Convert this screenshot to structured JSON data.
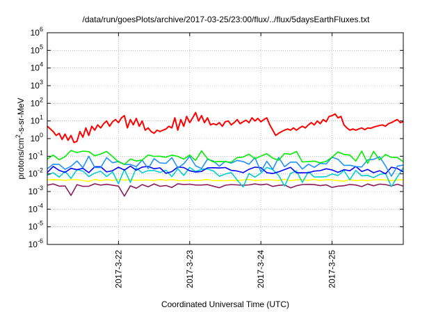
{
  "chart_data": {
    "type": "line",
    "title": "/data/run/goesPlots/archive/2017-03-25/23:00/flux/../flux/5daysEarthFluxes.txt",
    "xlabel": "Coordinated Universal Time (UTC)",
    "ylabel": {
      "base": "protons/cm",
      "sup": "2",
      "rest": "-s-sr-MeV"
    },
    "yscale": "log",
    "ylim": [
      1e-06,
      1000000.0
    ],
    "xlim": [
      "2017-03-21T00:00",
      "2017-03-26T00:00"
    ],
    "grid": true,
    "yticks": [
      {
        "value": 1e-06,
        "base": "10",
        "exp": "-6"
      },
      {
        "value": 1e-05,
        "base": "10",
        "exp": "-5"
      },
      {
        "value": 0.0001,
        "base": "10",
        "exp": "-4"
      },
      {
        "value": 0.001,
        "base": "10",
        "exp": "-3"
      },
      {
        "value": 0.01,
        "base": "10",
        "exp": "-2"
      },
      {
        "value": 0.1,
        "base": "10",
        "exp": "-1"
      },
      {
        "value": 1.0,
        "base": "10",
        "exp": "0"
      },
      {
        "value": 10.0,
        "base": "10",
        "exp": "1"
      },
      {
        "value": 100.0,
        "base": "10",
        "exp": "2"
      },
      {
        "value": 1000.0,
        "base": "10",
        "exp": "3"
      },
      {
        "value": 10000.0,
        "base": "10",
        "exp": "4"
      },
      {
        "value": 100000.0,
        "base": "10",
        "exp": "5"
      },
      {
        "value": 1000000.0,
        "base": "10",
        "exp": "6"
      }
    ],
    "xticks": [
      {
        "value": "2017-03-22T00:00",
        "label": "2017-3-22"
      },
      {
        "value": "2017-03-23T00:00",
        "label": "2017-3-23"
      },
      {
        "value": "2017-03-24T00:00",
        "label": "2017-3-24"
      },
      {
        "value": "2017-03-25T00:00",
        "label": "2017-3-25"
      }
    ],
    "series": [
      {
        "color": "#ff0000",
        "values": [
          [
            "2017-03-21T00:00",
            5
          ],
          [
            "2017-03-21T02:00",
            2.5
          ],
          [
            "2017-03-21T03:00",
            1.5
          ],
          [
            "2017-03-21T04:00",
            2
          ],
          [
            "2017-03-21T05:00",
            0.9
          ],
          [
            "2017-03-21T06:00",
            1.8
          ],
          [
            "2017-03-21T07:00",
            0.8
          ],
          [
            "2017-03-21T08:00",
            1.5
          ],
          [
            "2017-03-21T09:00",
            0.6
          ],
          [
            "2017-03-21T10:00",
            0.7
          ],
          [
            "2017-03-21T11:00",
            2.5
          ],
          [
            "2017-03-21T12:00",
            1.2
          ],
          [
            "2017-03-21T13:00",
            4
          ],
          [
            "2017-03-21T14:00",
            1.5
          ],
          [
            "2017-03-21T15:00",
            5
          ],
          [
            "2017-03-21T16:00",
            3
          ],
          [
            "2017-03-21T17:00",
            6
          ],
          [
            "2017-03-21T18:00",
            4
          ],
          [
            "2017-03-21T19:00",
            7
          ],
          [
            "2017-03-21T20:00",
            10
          ],
          [
            "2017-03-21T21:00",
            5
          ],
          [
            "2017-03-21T22:00",
            9
          ],
          [
            "2017-03-21T23:00",
            12
          ],
          [
            "2017-03-22T00:00",
            8
          ],
          [
            "2017-03-22T01:00",
            15
          ],
          [
            "2017-03-22T02:00",
            20
          ],
          [
            "2017-03-22T03:00",
            4
          ],
          [
            "2017-03-22T04:00",
            12
          ],
          [
            "2017-03-22T05:00",
            6
          ],
          [
            "2017-03-22T06:00",
            14
          ],
          [
            "2017-03-22T07:00",
            5
          ],
          [
            "2017-03-22T08:00",
            10
          ],
          [
            "2017-03-22T09:00",
            3
          ],
          [
            "2017-03-22T10:00",
            4
          ],
          [
            "2017-03-22T11:00",
            2.5
          ],
          [
            "2017-03-22T12:00",
            2
          ],
          [
            "2017-03-22T13:00",
            3
          ],
          [
            "2017-03-22T14:00",
            2.5
          ],
          [
            "2017-03-22T15:00",
            3
          ],
          [
            "2017-03-22T16:00",
            3.5
          ],
          [
            "2017-03-22T17:00",
            5
          ],
          [
            "2017-03-22T18:00",
            4
          ],
          [
            "2017-03-22T19:00",
            15
          ],
          [
            "2017-03-22T20:00",
            3
          ],
          [
            "2017-03-22T21:00",
            12
          ],
          [
            "2017-03-22T22:00",
            5
          ],
          [
            "2017-03-22T23:00",
            18
          ],
          [
            "2017-03-23T00:00",
            8
          ],
          [
            "2017-03-23T01:00",
            15
          ],
          [
            "2017-03-23T02:00",
            30
          ],
          [
            "2017-03-23T03:00",
            10
          ],
          [
            "2017-03-23T04:00",
            20
          ],
          [
            "2017-03-23T05:00",
            8
          ],
          [
            "2017-03-23T06:00",
            15
          ],
          [
            "2017-03-23T07:00",
            6
          ],
          [
            "2017-03-23T08:00",
            7
          ],
          [
            "2017-03-23T09:00",
            6
          ],
          [
            "2017-03-23T10:00",
            8
          ],
          [
            "2017-03-23T11:00",
            5
          ],
          [
            "2017-03-23T12:00",
            9
          ],
          [
            "2017-03-23T13:00",
            10
          ],
          [
            "2017-03-23T14:00",
            6
          ],
          [
            "2017-03-23T15:00",
            8
          ],
          [
            "2017-03-23T16:00",
            12
          ],
          [
            "2017-03-23T17:00",
            7
          ],
          [
            "2017-03-23T18:00",
            9
          ],
          [
            "2017-03-23T19:00",
            11
          ],
          [
            "2017-03-23T20:00",
            8
          ],
          [
            "2017-03-23T21:00",
            15
          ],
          [
            "2017-03-23T22:00",
            10
          ],
          [
            "2017-03-23T23:00",
            14
          ],
          [
            "2017-03-24T00:00",
            9
          ],
          [
            "2017-03-24T01:00",
            12
          ],
          [
            "2017-03-24T02:00",
            15
          ],
          [
            "2017-03-24T03:00",
            6
          ],
          [
            "2017-03-24T04:00",
            3
          ],
          [
            "2017-03-24T05:00",
            1.5
          ],
          [
            "2017-03-24T06:00",
            2
          ],
          [
            "2017-03-24T07:00",
            2.5
          ],
          [
            "2017-03-24T08:00",
            3
          ],
          [
            "2017-03-24T09:00",
            3.5
          ],
          [
            "2017-03-24T10:00",
            3
          ],
          [
            "2017-03-24T11:00",
            4
          ],
          [
            "2017-03-24T12:00",
            3
          ],
          [
            "2017-03-24T13:00",
            4
          ],
          [
            "2017-03-24T14:00",
            5
          ],
          [
            "2017-03-24T15:00",
            4
          ],
          [
            "2017-03-24T16:00",
            6
          ],
          [
            "2017-03-24T17:00",
            8
          ],
          [
            "2017-03-24T18:00",
            6
          ],
          [
            "2017-03-24T19:00",
            10
          ],
          [
            "2017-03-24T20:00",
            7
          ],
          [
            "2017-03-24T21:00",
            12
          ],
          [
            "2017-03-24T22:00",
            9
          ],
          [
            "2017-03-24T23:00",
            18
          ],
          [
            "2017-03-25T00:00",
            20
          ],
          [
            "2017-03-25T01:00",
            25
          ],
          [
            "2017-03-25T02:00",
            15
          ],
          [
            "2017-03-25T03:00",
            18
          ],
          [
            "2017-03-25T04:00",
            6
          ],
          [
            "2017-03-25T05:00",
            4
          ],
          [
            "2017-03-25T06:00",
            3
          ],
          [
            "2017-03-25T07:00",
            3.5
          ],
          [
            "2017-03-25T08:00",
            3
          ],
          [
            "2017-03-25T09:00",
            3.5
          ],
          [
            "2017-03-25T10:00",
            4
          ],
          [
            "2017-03-25T11:00",
            3.2
          ],
          [
            "2017-03-25T12:00",
            4
          ],
          [
            "2017-03-25T13:00",
            3.8
          ],
          [
            "2017-03-25T14:00",
            4.5
          ],
          [
            "2017-03-25T15:00",
            5
          ],
          [
            "2017-03-25T16:00",
            5.5
          ],
          [
            "2017-03-25T17:00",
            6
          ],
          [
            "2017-03-25T18:00",
            5
          ],
          [
            "2017-03-25T19:00",
            7
          ],
          [
            "2017-03-25T20:00",
            8
          ],
          [
            "2017-03-25T21:00",
            10
          ],
          [
            "2017-03-25T22:00",
            12
          ],
          [
            "2017-03-25T23:00",
            8
          ],
          [
            "2017-03-26T00:00",
            9
          ]
        ]
      },
      {
        "color": "#00ee00",
        "base": 0.1,
        "amp": 0.35,
        "dips": 0.35
      },
      {
        "color": "#1e90ff",
        "base": 0.04,
        "amp": 0.4,
        "dips": 0.5
      },
      {
        "color": "#0000ff",
        "base": 0.018,
        "amp": 0.2,
        "dips": 0.25
      },
      {
        "color": "#00ced1",
        "base": 0.012,
        "amp": 0.3,
        "dips": 0.6
      },
      {
        "color": "#ffff00",
        "base": 0.0045,
        "amp": 0.04,
        "dips": 0.08
      },
      {
        "color": "#8b1a5a",
        "base": 0.0023,
        "amp": 0.08,
        "dips": 0.15,
        "spikes": [
          [
            "2017-03-21T08:00",
            0.0006
          ],
          [
            "2017-03-22T01:00",
            0.0015
          ],
          [
            "2017-03-22T02:00",
            0.00055
          ]
        ]
      }
    ]
  }
}
